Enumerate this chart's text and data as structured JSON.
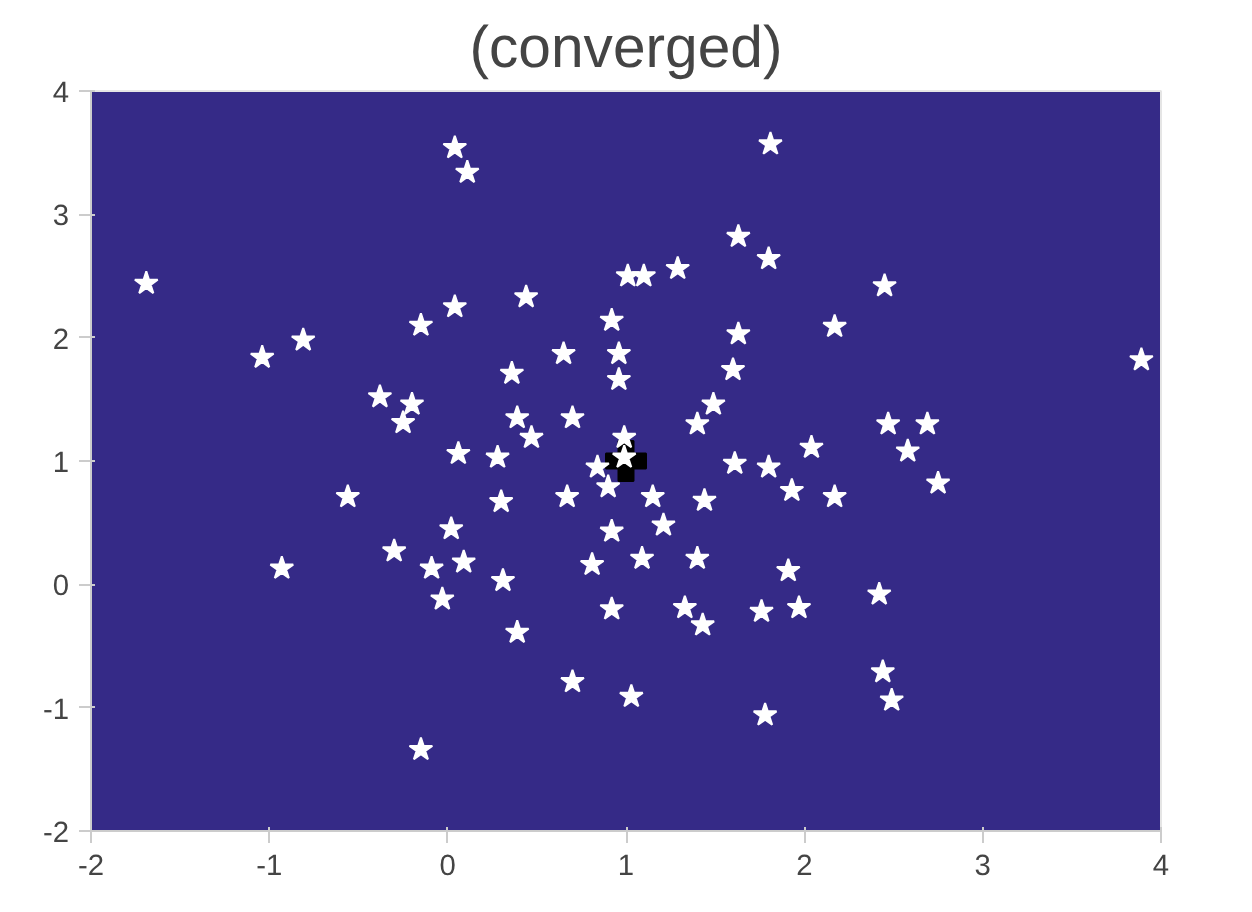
{
  "chart_data": {
    "type": "scatter",
    "title": "(converged)",
    "xlim": [
      -2,
      4
    ],
    "ylim": [
      -2,
      4
    ],
    "xticks": [
      -2,
      -1,
      0,
      1,
      2,
      3,
      4
    ],
    "yticks": [
      -2,
      -1,
      0,
      1,
      2,
      3,
      4
    ],
    "grid": false,
    "series": [
      {
        "color": "#ffffff",
        "marker": "star",
        "x": [
          -1.69,
          0.04,
          0.11,
          -1.04,
          -0.81,
          -0.15,
          0.04,
          0.44,
          1.81,
          1.63,
          1.8,
          2.45,
          2.17,
          3.89,
          1.29,
          1.01,
          1.1,
          1.63,
          0.92,
          0.96,
          0.96,
          2.47,
          2.69,
          2.58,
          1.6,
          1.49,
          1.4,
          0.65,
          0.36,
          -0.38,
          -0.2,
          -0.25,
          0.39,
          0.7,
          0.06,
          0.28,
          0.47,
          -0.56,
          -0.93,
          -0.3,
          -0.09,
          0.09,
          -0.03,
          0.02,
          0.31,
          0.3,
          0.39,
          0.7,
          -0.15,
          1.03,
          0.67,
          0.92,
          0.81,
          0.92,
          0.99,
          0.84,
          2.04,
          1.8,
          1.93,
          2.17,
          2.75,
          1.44,
          1.61,
          1.09,
          1.4,
          1.21,
          1.91,
          2.42,
          1.33,
          1.43,
          1.76,
          1.97,
          2.44,
          2.49,
          1.78,
          0.99,
          0.9,
          1.15
        ],
        "values": [
          2.44,
          3.54,
          3.34,
          1.84,
          1.98,
          2.1,
          2.25,
          2.33,
          3.57,
          2.82,
          2.64,
          2.42,
          2.09,
          1.82,
          2.56,
          2.5,
          2.5,
          2.03,
          2.14,
          1.87,
          1.66,
          1.3,
          1.3,
          1.08,
          1.74,
          1.46,
          1.3,
          1.87,
          1.71,
          1.52,
          1.46,
          1.31,
          1.35,
          1.35,
          1.06,
          1.03,
          1.19,
          0.71,
          0.13,
          0.27,
          0.13,
          0.18,
          -0.12,
          0.45,
          0.03,
          0.67,
          -0.39,
          -0.79,
          -1.34,
          -0.91,
          0.71,
          0.43,
          0.16,
          -0.2,
          1.03,
          0.95,
          1.11,
          0.95,
          0.76,
          0.71,
          0.82,
          0.68,
          0.98,
          0.21,
          0.21,
          0.48,
          0.11,
          -0.08,
          -0.19,
          -0.33,
          -0.22,
          -0.19,
          -0.71,
          -0.94,
          -1.06,
          1.19,
          0.79,
          0.71
        ]
      },
      {
        "color": "#000000",
        "marker": "cross",
        "x": [
          1
        ],
        "values": [
          1
        ]
      }
    ]
  }
}
